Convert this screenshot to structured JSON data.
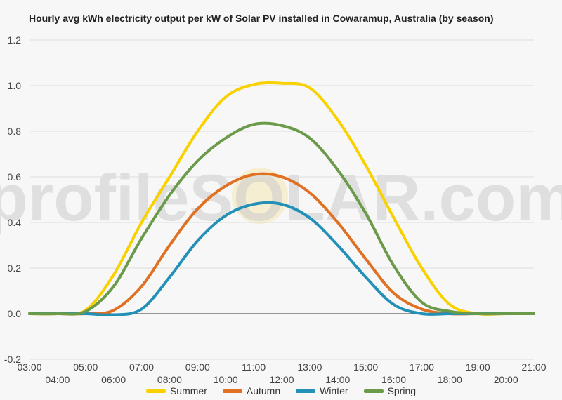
{
  "chart_data": {
    "type": "line",
    "title": "Hourly avg kWh electricity output per kW of Solar PV installed in Cowaramup, Australia (by season)",
    "watermark": "profileSOLAR.com",
    "xlim": [
      3,
      21
    ],
    "ylim": [
      -0.2,
      1.2
    ],
    "y_ticks": [
      "-0.2",
      "0.0",
      "0.2",
      "0.4",
      "0.6",
      "0.8",
      "1.0",
      "1.2"
    ],
    "x_ticks": [
      "03:00",
      "04:00",
      "05:00",
      "06:00",
      "07:00",
      "08:00",
      "09:00",
      "10:00",
      "11:00",
      "12:00",
      "13:00",
      "14:00",
      "15:00",
      "16:00",
      "17:00",
      "18:00",
      "19:00",
      "20:00",
      "21:00"
    ],
    "grid": true,
    "legend_position": "bottom",
    "x": [
      3,
      4,
      5,
      6,
      7,
      8,
      9,
      10,
      11,
      12,
      13,
      14,
      15,
      16,
      17,
      18,
      19,
      20,
      21
    ],
    "series": [
      {
        "name": "Summer",
        "color": "#f9d100",
        "values": [
          0,
          0,
          0.015,
          0.17,
          0.4,
          0.6,
          0.8,
          0.95,
          1.005,
          1.01,
          0.99,
          0.85,
          0.65,
          0.42,
          0.2,
          0.04,
          0,
          0,
          0
        ]
      },
      {
        "name": "Autumn",
        "color": "#e07022",
        "values": [
          0,
          0,
          0,
          0.015,
          0.12,
          0.3,
          0.46,
          0.56,
          0.61,
          0.6,
          0.53,
          0.4,
          0.24,
          0.09,
          0.02,
          0,
          0,
          0,
          0
        ]
      },
      {
        "name": "Winter",
        "color": "#2390b8",
        "values": [
          0,
          0,
          0,
          -0.005,
          0.02,
          0.16,
          0.32,
          0.43,
          0.48,
          0.48,
          0.42,
          0.3,
          0.16,
          0.04,
          0,
          0,
          0,
          0,
          0
        ]
      },
      {
        "name": "Spring",
        "color": "#6a9a4a",
        "values": [
          0,
          0,
          0.01,
          0.12,
          0.33,
          0.52,
          0.67,
          0.77,
          0.83,
          0.825,
          0.77,
          0.63,
          0.44,
          0.21,
          0.05,
          0.01,
          0,
          0,
          0
        ]
      }
    ]
  }
}
